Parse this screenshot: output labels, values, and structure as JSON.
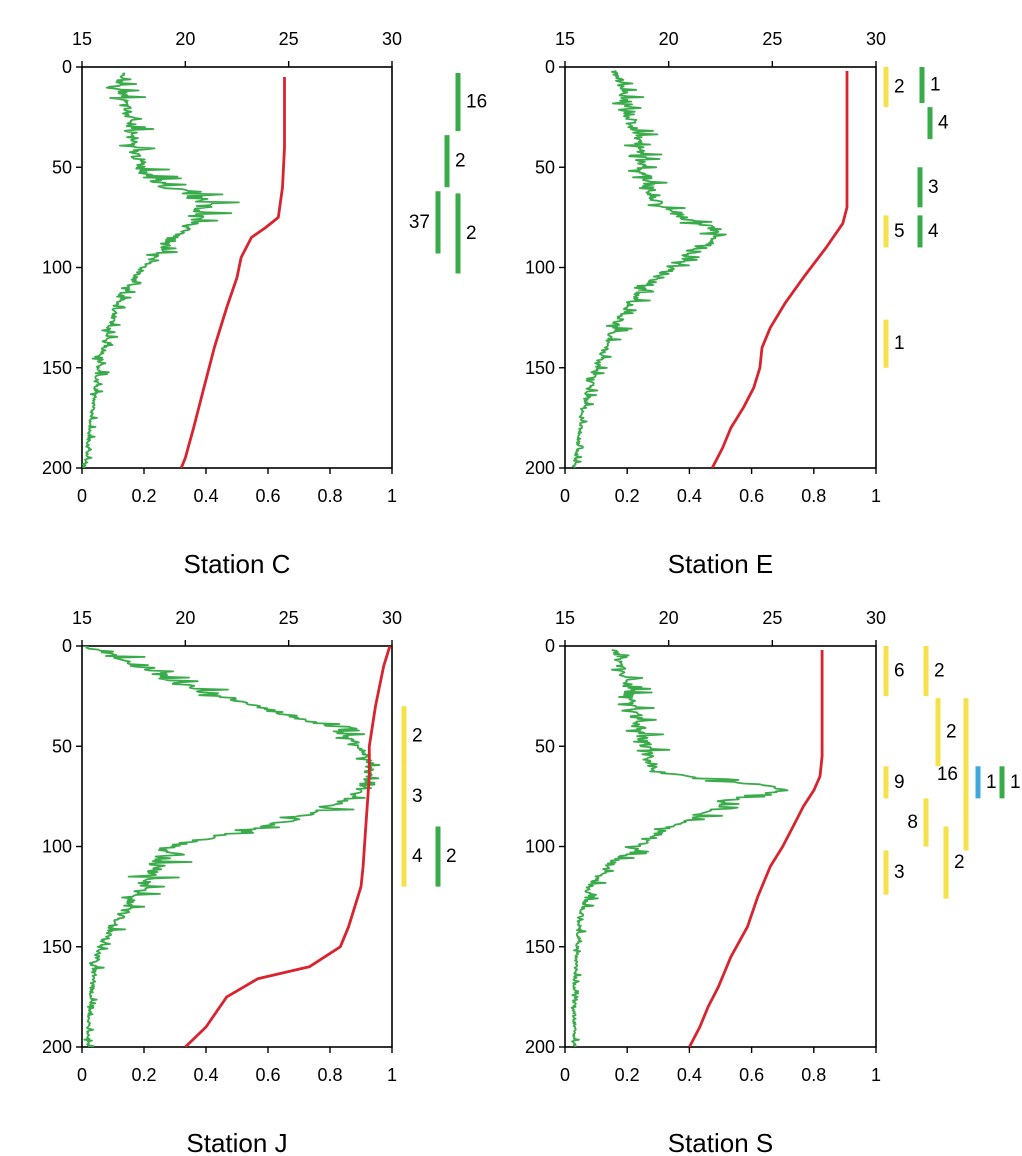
{
  "colors": {
    "green": "#3aab4a",
    "red": "#d9232e",
    "yellow": "#f5e24a",
    "blue": "#3ea8dc",
    "axis": "#000000"
  },
  "chart_data": [
    {
      "type": "line",
      "title": "Station C",
      "top_axis": {
        "range": [
          15,
          30
        ],
        "ticks": [
          "15",
          "20",
          "25",
          "30"
        ]
      },
      "bottom_axis": {
        "range": [
          0,
          1
        ],
        "ticks": [
          "0",
          "0.2",
          "0.4",
          "0.6",
          "0.8",
          "1"
        ]
      },
      "y_axis": {
        "range": [
          0,
          200
        ],
        "inverted": true,
        "ticks": [
          "0",
          "50",
          "100",
          "150",
          "200"
        ]
      },
      "series": [
        {
          "color": "#3aab4a",
          "axis": "bottom",
          "noisy": true,
          "x": [
            0.14,
            0.12,
            0.13,
            0.15,
            0.16,
            0.17,
            0.19,
            0.2,
            0.23,
            0.28,
            0.36,
            0.4,
            0.38,
            0.35,
            0.3,
            0.26,
            0.22,
            0.19,
            0.16,
            0.12,
            0.1,
            0.08,
            0.06,
            0.05,
            0.04,
            0.03,
            0.02,
            0.01
          ],
          "y": [
            3,
            8,
            15,
            25,
            35,
            42,
            48,
            52,
            56,
            60,
            64,
            68,
            72,
            78,
            84,
            90,
            96,
            102,
            108,
            115,
            125,
            135,
            145,
            155,
            165,
            175,
            188,
            200
          ],
          "amp": [
            0.02,
            0.03,
            0.04,
            0.04,
            0.04,
            0.04,
            0.04,
            0.05,
            0.05,
            0.06,
            0.07,
            0.07,
            0.06,
            0.05,
            0.04,
            0.04,
            0.03,
            0.03,
            0.02,
            0.02,
            0.02,
            0.02,
            0.02,
            0.02,
            0.01,
            0.01,
            0.01,
            0.01
          ]
        },
        {
          "color": "#d9232e",
          "axis": "top",
          "x": [
            24.8,
            24.8,
            24.8,
            24.7,
            24.5,
            23.9,
            23.2,
            22.7,
            22.5,
            22.0,
            21.4,
            20.9,
            20.4,
            20.0,
            19.8
          ],
          "y": [
            5,
            20,
            40,
            60,
            75,
            80,
            85,
            95,
            105,
            120,
            140,
            160,
            180,
            195,
            200
          ]
        }
      ],
      "bars": [
        {
          "color": "#3aab4a",
          "from": 3,
          "to": 32,
          "label": "16",
          "label_side": "right"
        },
        {
          "color": "#3aab4a",
          "from": 34,
          "to": 60,
          "label": "2",
          "label_side": "right"
        },
        {
          "color": "#3aab4a",
          "from": 63,
          "to": 103,
          "label": "2",
          "label_side": "right"
        },
        {
          "color": "#3aab4a",
          "from": 62,
          "to": 93,
          "label": "37",
          "label_side": "left"
        }
      ]
    },
    {
      "type": "line",
      "title": "Station E",
      "top_axis": {
        "range": [
          15,
          30
        ],
        "ticks": [
          "15",
          "20",
          "25",
          "30"
        ]
      },
      "bottom_axis": {
        "range": [
          0,
          1
        ],
        "ticks": [
          "0",
          "0.2",
          "0.4",
          "0.6",
          "0.8",
          "1"
        ]
      },
      "y_axis": {
        "range": [
          0,
          200
        ],
        "inverted": true,
        "ticks": [
          "0",
          "50",
          "100",
          "150",
          "200"
        ]
      },
      "series": [
        {
          "color": "#3aab4a",
          "axis": "bottom",
          "noisy": true,
          "x": [
            0.17,
            0.18,
            0.2,
            0.22,
            0.24,
            0.25,
            0.27,
            0.3,
            0.38,
            0.48,
            0.5,
            0.46,
            0.4,
            0.36,
            0.3,
            0.24,
            0.2,
            0.16,
            0.13,
            0.1,
            0.08,
            0.06,
            0.05,
            0.04,
            0.03
          ],
          "y": [
            2,
            10,
            20,
            30,
            40,
            50,
            60,
            68,
            75,
            80,
            84,
            88,
            93,
            98,
            105,
            112,
            120,
            130,
            140,
            150,
            160,
            170,
            180,
            190,
            200
          ],
          "amp": [
            0.02,
            0.03,
            0.04,
            0.04,
            0.04,
            0.04,
            0.04,
            0.04,
            0.05,
            0.05,
            0.05,
            0.05,
            0.05,
            0.04,
            0.04,
            0.03,
            0.03,
            0.03,
            0.02,
            0.02,
            0.02,
            0.02,
            0.01,
            0.01,
            0.01
          ]
        },
        {
          "color": "#d9232e",
          "axis": "top",
          "x": [
            28.6,
            28.6,
            28.6,
            28.6,
            28.6,
            28.4,
            27.6,
            26.5,
            25.6,
            24.9,
            24.5,
            24.4,
            24.1,
            23.6,
            23.0,
            22.6,
            22.1
          ],
          "y": [
            2,
            20,
            40,
            60,
            70,
            78,
            90,
            105,
            118,
            130,
            140,
            150,
            160,
            170,
            180,
            190,
            200
          ]
        }
      ],
      "bars": [
        {
          "color": "#f5e24a",
          "from": 0,
          "to": 20,
          "label": "2",
          "label_side": "right"
        },
        {
          "color": "#3aab4a",
          "from": 0,
          "to": 18,
          "label": "1",
          "label_side": "right"
        },
        {
          "color": "#3aab4a",
          "from": 20,
          "to": 36,
          "label": "4",
          "label_side": "right"
        },
        {
          "color": "#3aab4a",
          "from": 50,
          "to": 70,
          "label": "3",
          "label_side": "right"
        },
        {
          "color": "#f5e24a",
          "from": 74,
          "to": 90,
          "label": "5",
          "label_side": "right"
        },
        {
          "color": "#3aab4a",
          "from": 74,
          "to": 90,
          "label": "4",
          "label_side": "right"
        },
        {
          "color": "#f5e24a",
          "from": 126,
          "to": 150,
          "label": "1",
          "label_side": "right"
        }
      ]
    },
    {
      "type": "line",
      "title": "Station J",
      "top_axis": {
        "range": [
          15,
          30
        ],
        "ticks": [
          "15",
          "20",
          "25",
          "30"
        ]
      },
      "bottom_axis": {
        "range": [
          0,
          1
        ],
        "ticks": [
          "0",
          "0.2",
          "0.4",
          "0.6",
          "0.8",
          "1"
        ]
      },
      "y_axis": {
        "range": [
          0,
          200
        ],
        "inverted": true,
        "ticks": [
          "0",
          "50",
          "100",
          "150",
          "200"
        ]
      },
      "series": [
        {
          "color": "#3aab4a",
          "axis": "bottom",
          "noisy": true,
          "x": [
            0.01,
            0.1,
            0.2,
            0.3,
            0.45,
            0.6,
            0.75,
            0.85,
            0.9,
            0.93,
            0.92,
            0.88,
            0.78,
            0.6,
            0.4,
            0.28,
            0.24,
            0.2,
            0.15,
            0.1,
            0.06,
            0.04,
            0.03,
            0.02,
            0.02
          ],
          "y": [
            0,
            5,
            10,
            18,
            25,
            32,
            38,
            44,
            50,
            58,
            66,
            74,
            82,
            90,
            96,
            100,
            110,
            120,
            130,
            140,
            150,
            160,
            175,
            190,
            200
          ],
          "amp": [
            0.02,
            0.05,
            0.06,
            0.06,
            0.06,
            0.05,
            0.05,
            0.04,
            0.03,
            0.03,
            0.03,
            0.03,
            0.05,
            0.05,
            0.05,
            0.05,
            0.06,
            0.05,
            0.04,
            0.03,
            0.02,
            0.02,
            0.01,
            0.01,
            0.01
          ]
        },
        {
          "color": "#d9232e",
          "axis": "top",
          "x": [
            29.9,
            29.6,
            29.2,
            28.9,
            28.9,
            28.8,
            28.7,
            28.6,
            28.5,
            28.2,
            27.9,
            27.5,
            26.0,
            23.5,
            22.0,
            21.0,
            20.0
          ],
          "y": [
            0,
            10,
            30,
            50,
            65,
            80,
            95,
            110,
            120,
            130,
            140,
            150,
            160,
            166,
            175,
            190,
            200
          ]
        }
      ],
      "bars": [
        {
          "color": "#f5e24a",
          "from": 30,
          "to": 60,
          "label": "2",
          "label_side": "right"
        },
        {
          "color": "#f5e24a",
          "from": 60,
          "to": 90,
          "label": "3",
          "label_side": "right"
        },
        {
          "color": "#f5e24a",
          "from": 90,
          "to": 120,
          "label": "4",
          "label_side": "right"
        },
        {
          "color": "#3aab4a",
          "from": 90,
          "to": 120,
          "label": "2",
          "label_side": "right"
        }
      ]
    },
    {
      "type": "line",
      "title": "Station S",
      "top_axis": {
        "range": [
          15,
          30
        ],
        "ticks": [
          "15",
          "20",
          "25",
          "30"
        ]
      },
      "bottom_axis": {
        "range": [
          0,
          1
        ],
        "ticks": [
          "0",
          "0.2",
          "0.4",
          "0.6",
          "0.8",
          "1"
        ]
      },
      "y_axis": {
        "range": [
          0,
          200
        ],
        "inverted": true,
        "ticks": [
          "0",
          "50",
          "100",
          "150",
          "200"
        ]
      },
      "series": [
        {
          "color": "#3aab4a",
          "axis": "bottom",
          "noisy": true,
          "x": [
            0.16,
            0.18,
            0.2,
            0.22,
            0.24,
            0.26,
            0.27,
            0.3,
            0.42,
            0.62,
            0.7,
            0.55,
            0.45,
            0.35,
            0.25,
            0.15,
            0.08,
            0.05,
            0.04,
            0.03,
            0.03
          ],
          "y": [
            2,
            10,
            20,
            30,
            40,
            50,
            58,
            63,
            66,
            69,
            72,
            76,
            82,
            90,
            98,
            108,
            120,
            135,
            150,
            170,
            200
          ],
          "amp": [
            0.02,
            0.03,
            0.04,
            0.04,
            0.04,
            0.04,
            0.04,
            0.05,
            0.05,
            0.05,
            0.05,
            0.05,
            0.05,
            0.04,
            0.04,
            0.03,
            0.02,
            0.02,
            0.01,
            0.01,
            0.01
          ]
        },
        {
          "color": "#d9232e",
          "axis": "top",
          "x": [
            27.4,
            27.4,
            27.4,
            27.4,
            27.3,
            27.0,
            26.5,
            26.0,
            25.5,
            24.9,
            24.3,
            23.8,
            23.0,
            22.4,
            21.9,
            21.5,
            21.0
          ],
          "y": [
            2,
            20,
            40,
            55,
            65,
            72,
            80,
            90,
            100,
            110,
            125,
            140,
            155,
            170,
            180,
            190,
            200
          ]
        }
      ],
      "bars": [
        {
          "color": "#f5e24a",
          "from": 0,
          "to": 25,
          "label": "6",
          "label_side": "right"
        },
        {
          "color": "#f5e24a",
          "from": 0,
          "to": 25,
          "label": "2",
          "label_side": "right"
        },
        {
          "color": "#f5e24a",
          "from": 26,
          "to": 60,
          "label": "2",
          "label_side": "right"
        },
        {
          "color": "#f5e24a",
          "from": 26,
          "to": 102,
          "label": "16",
          "label_side": "left"
        },
        {
          "color": "#f5e24a",
          "from": 60,
          "to": 76,
          "label": "9",
          "label_side": "right"
        },
        {
          "color": "#3ea8dc",
          "from": 60,
          "to": 76,
          "label": "1",
          "label_side": "right"
        },
        {
          "color": "#3aab4a",
          "from": 60,
          "to": 76,
          "label": "1",
          "label_side": "right"
        },
        {
          "color": "#f5e24a",
          "from": 76,
          "to": 100,
          "label": "8",
          "label_side": "left"
        },
        {
          "color": "#f5e24a",
          "from": 90,
          "to": 126,
          "label": "2",
          "label_side": "right"
        },
        {
          "color": "#f5e24a",
          "from": 102,
          "to": 124,
          "label": "3",
          "label_side": "right"
        }
      ]
    }
  ]
}
